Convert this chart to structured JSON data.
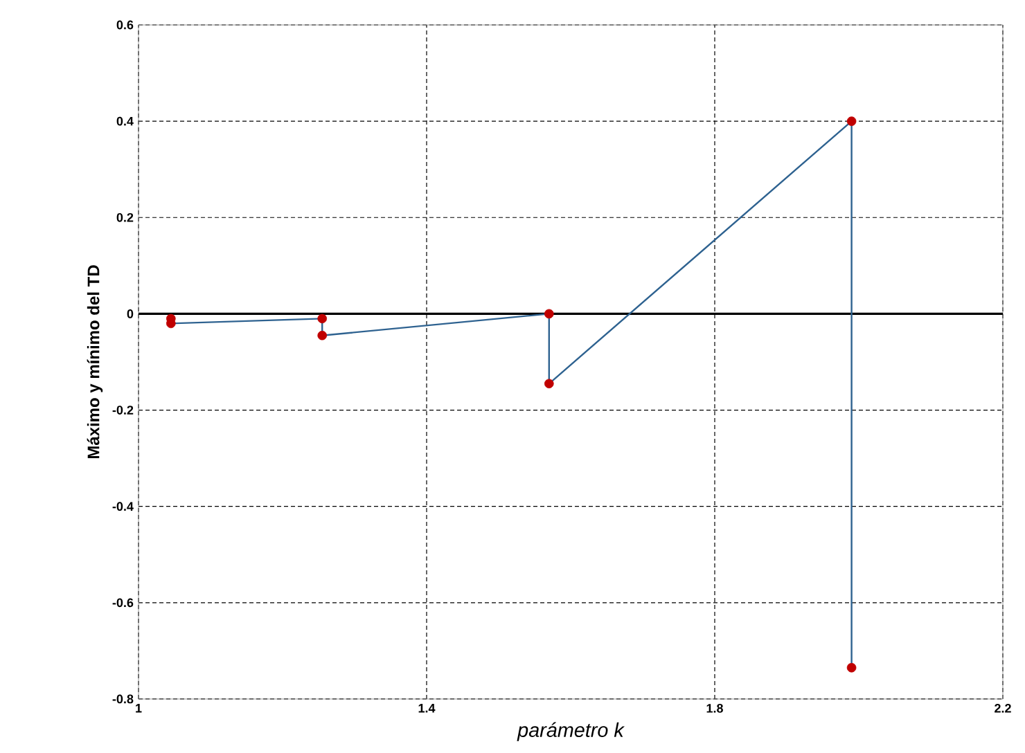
{
  "chart_data": {
    "type": "line",
    "xlabel": "parámetro k",
    "ylabel": "Máximo y mínimo del TD",
    "xlim": [
      1,
      2.2
    ],
    "xticks": [
      1,
      1.4,
      1.8,
      2.2
    ],
    "ylim": [
      -0.8,
      0.6
    ],
    "yticks": [
      -0.8,
      -0.6,
      -0.4,
      -0.2,
      0,
      0.2,
      0.4,
      0.6
    ],
    "grid": true,
    "marker": "circle",
    "line_style": "solid",
    "series": [
      {
        "color": "#2e6290",
        "colors": [
          "#c00000",
          "#c00000",
          "#c00000",
          "#c00000",
          "#c00000",
          "#c00000",
          "#c00000",
          "#c00000"
        ],
        "x": [
          1.045,
          1.045,
          1.255,
          1.255,
          1.57,
          1.57,
          1.99,
          1.99
        ],
        "values": [
          -0.01,
          -0.02,
          -0.01,
          -0.045,
          0,
          -0.145,
          0.4,
          -0.735
        ]
      }
    ]
  }
}
